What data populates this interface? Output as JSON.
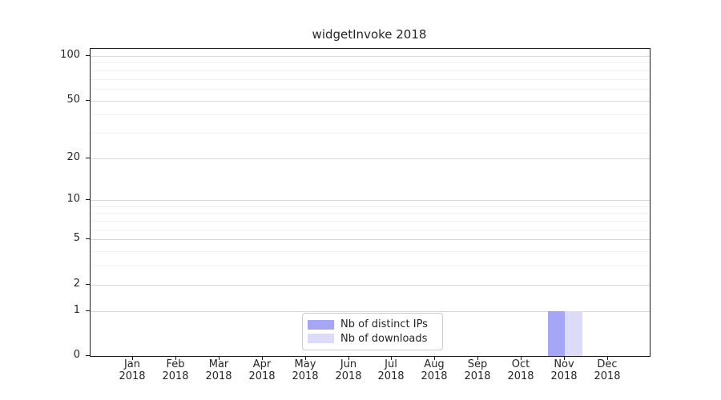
{
  "title": "widgetInvoke 2018",
  "chart_data": {
    "type": "bar",
    "title": "widgetInvoke 2018",
    "x_categories": [
      "Jan",
      "Feb",
      "Mar",
      "Apr",
      "May",
      "Jun",
      "Jul",
      "Aug",
      "Sep",
      "Oct",
      "Nov",
      "Dec"
    ],
    "x_year": "2018",
    "series": [
      {
        "name": "Nb of distinct IPs",
        "color": "#a6a6f7",
        "values": [
          0,
          0,
          0,
          0,
          0,
          0,
          0,
          0,
          0,
          0,
          1,
          0
        ]
      },
      {
        "name": "Nb of downloads",
        "color": "#dcdcf9",
        "values": [
          0,
          0,
          0,
          0,
          0,
          0,
          0,
          0,
          0,
          0,
          1,
          0
        ]
      }
    ],
    "y_axis": {
      "scale": "log1p",
      "major_ticks": [
        0,
        1,
        2,
        5,
        10,
        20,
        50,
        100
      ],
      "minor_ticks": [
        3,
        4,
        6,
        7,
        8,
        9,
        30,
        40,
        60,
        70,
        80,
        90
      ],
      "range": [
        0,
        112
      ]
    },
    "grid": {
      "major_color": "#d8d8d8",
      "minor_color": "#f2f2f2",
      "grid_on": true
    },
    "legend": {
      "position": "lower-center-inside"
    }
  }
}
